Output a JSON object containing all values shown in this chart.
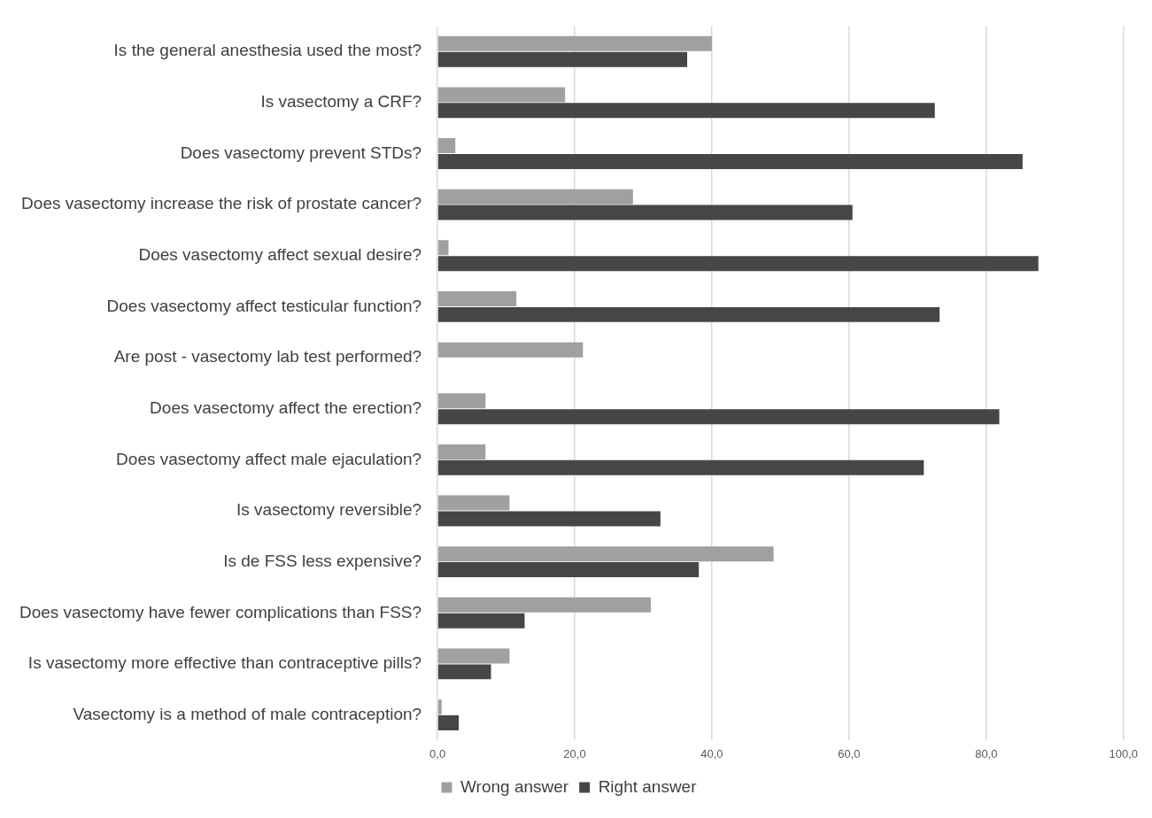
{
  "chart_data": {
    "type": "bar",
    "orientation": "horizontal",
    "categories": [
      "Is the general anesthesia used the most?",
      "Is vasectomy a CRF?",
      "Does vasectomy prevent STDs?",
      "Does vasectomy increase the risk of prostate cancer?",
      "Does vasectomy affect sexual desire?",
      "Does vasectomy affect testicular function?",
      "Are post - vasectomy lab test performed?",
      "Does vasectomy affect the erection?",
      "Does vasectomy affect male ejaculation?",
      "Is vasectomy reversible?",
      "Is de FSS less expensive?",
      "Does vasectomy have fewer complications than FSS?",
      "Is vasectomy more effective than contraceptive pills?",
      "Vasectomy is a method of male contraception?"
    ],
    "series": [
      {
        "name": "Wrong answer",
        "color": "#a0a0a0",
        "values": [
          40,
          18.6,
          2.6,
          28.5,
          1.6,
          11.5,
          21.2,
          7,
          7,
          10.5,
          49,
          31.1,
          10.5,
          0.6
        ]
      },
      {
        "name": "Right answer",
        "color": "#464646",
        "values": [
          36.4,
          72.5,
          85.3,
          60.5,
          87.6,
          73.2,
          0,
          81.9,
          70.9,
          32.5,
          38.1,
          12.7,
          7.8,
          3.1
        ]
      }
    ],
    "xlim": [
      0,
      100
    ],
    "xticks": [
      {
        "value": 0,
        "label": "0,0"
      },
      {
        "value": 20,
        "label": "20,0"
      },
      {
        "value": 40,
        "label": "40,0"
      },
      {
        "value": 60,
        "label": "60,0"
      },
      {
        "value": 80,
        "label": "80,0"
      },
      {
        "value": 100,
        "label": "100,0"
      }
    ],
    "grid": "x",
    "legend": "bottom"
  }
}
